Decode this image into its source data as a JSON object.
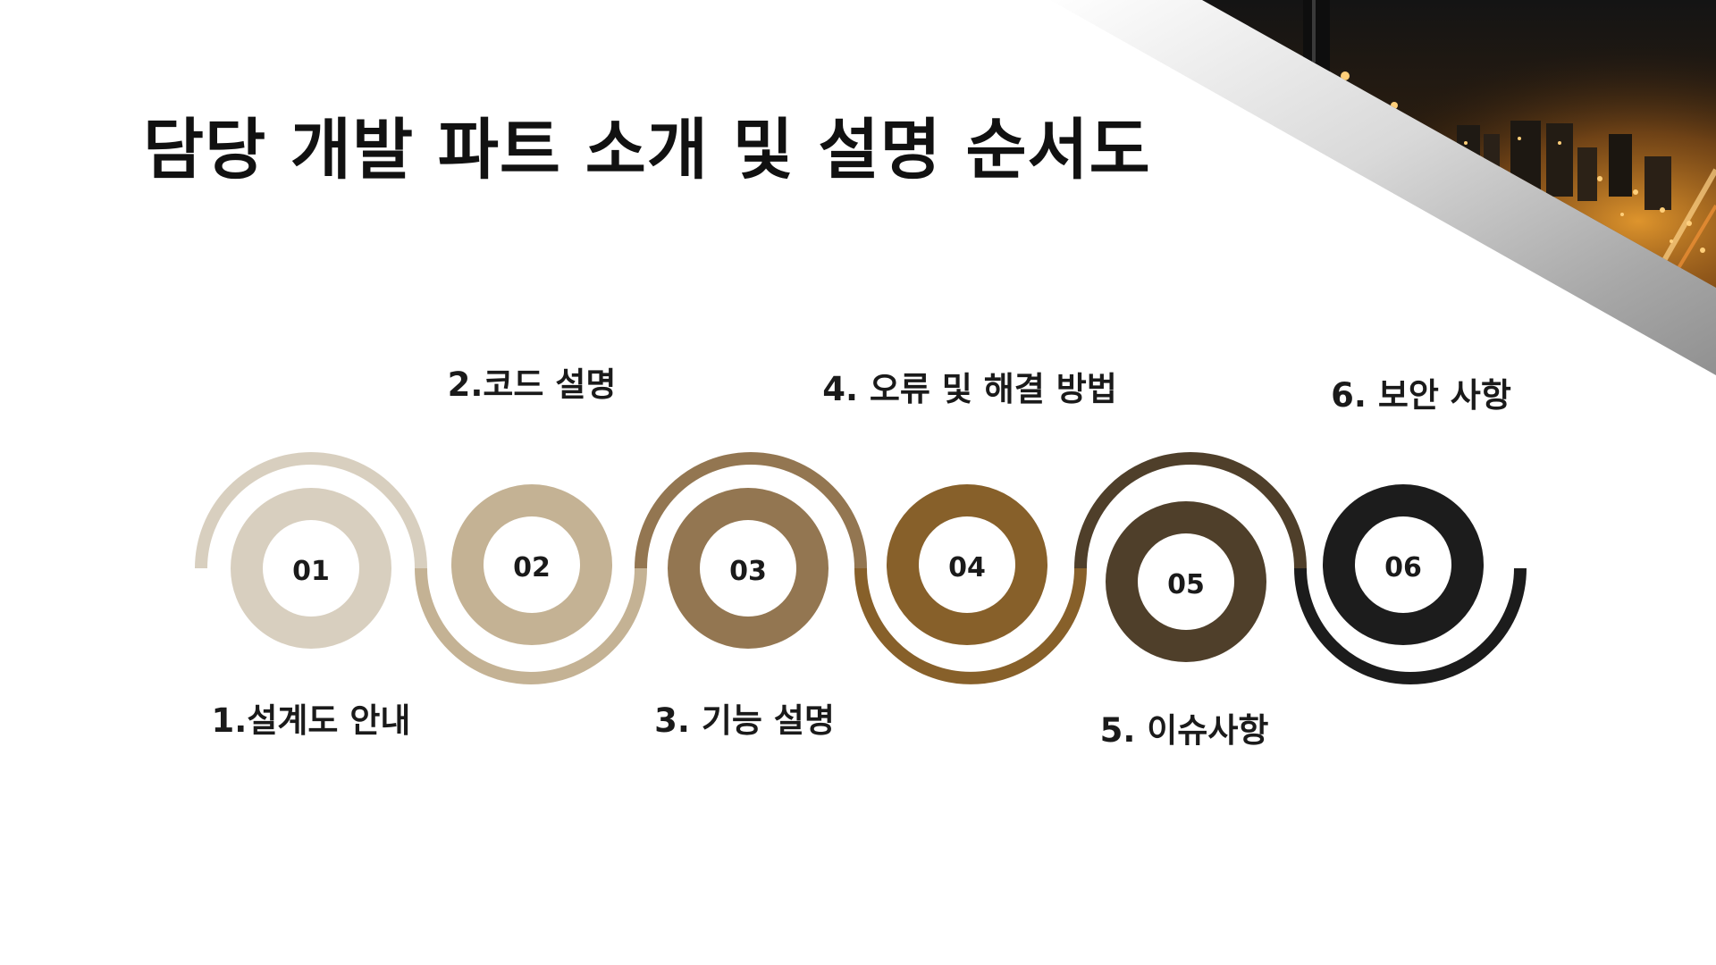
{
  "slide": {
    "title": "담당 개발 파트 소개 및 설명 순서도"
  },
  "process": {
    "steps": [
      {
        "number": "01",
        "label": "1.설계도 안내",
        "color": "#d8cfbf"
      },
      {
        "number": "02",
        "label": "2.코드 설명",
        "color": "#c4b294"
      },
      {
        "number": "03",
        "label": "3. 기능 설명",
        "color": "#937651"
      },
      {
        "number": "04",
        "label": "4. 오류 및 해결 방법",
        "color": "#87602a"
      },
      {
        "number": "05",
        "label": "5. 이슈사항",
        "color": "#4f3f2a"
      },
      {
        "number": "06",
        "label": "6. 보안 사항",
        "color": "#1c1c1c"
      }
    ]
  },
  "corner_image": {
    "icon": "city-night-skyline-photo"
  }
}
